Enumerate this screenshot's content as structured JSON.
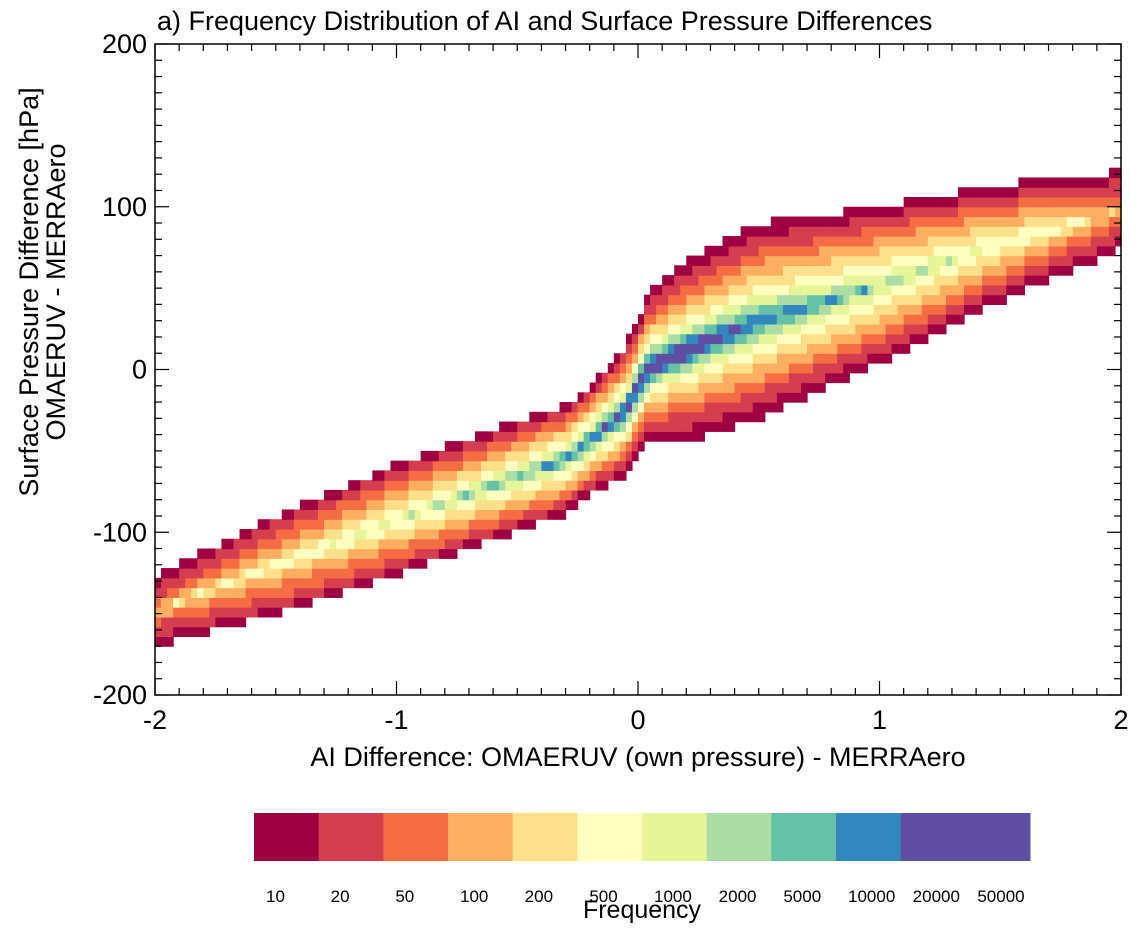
{
  "chart_data": {
    "type": "heatmap",
    "title": "a) Frequency Distribution of AI and Surface Pressure Differences",
    "xlabel": "AI Difference: OMAERUV (own pressure) - MERRAero",
    "ylabel_line1": "Surface Pressure Difference [hPa]",
    "ylabel_line2": "OMAERUV - MERRAero",
    "xlim": [
      -2,
      2
    ],
    "ylim": [
      -200,
      200
    ],
    "x_ticks": [
      "-2",
      "-1",
      "0",
      "1",
      "2"
    ],
    "y_ticks": [
      "-200",
      "-100",
      "0",
      "100",
      "200"
    ],
    "x_tick_values": [
      -2,
      -1,
      0,
      1,
      2
    ],
    "y_tick_values": [
      -200,
      -100,
      0,
      100,
      200
    ],
    "colorbar": {
      "label": "Frequency",
      "levels": [
        "10",
        "20",
        "50",
        "100",
        "200",
        "500",
        "1000",
        "2000",
        "5000",
        "10000",
        "20000",
        "50000"
      ],
      "colors": [
        "#9e0142",
        "#d53e4f",
        "#f46d43",
        "#fdae61",
        "#fee08b",
        "#ffffbf",
        "#e6f598",
        "#abdda4",
        "#66c2a5",
        "#3288bd",
        "#5e4fa2",
        "#5e4fa2"
      ]
    },
    "distribution": {
      "description_values": "Frequency is highest along a central ridge through (0,0); width of each colour band in hPa, listed from the outermost (10) band inward",
      "ridge_center": [
        {
          "x": -2.0,
          "y": -148
        },
        {
          "x": -1.0,
          "y": -92
        },
        {
          "x": -0.3,
          "y": -55
        },
        {
          "x": -0.05,
          "y": -25
        },
        {
          "x": 0.0,
          "y": -10
        },
        {
          "x": 0.05,
          "y": 2
        },
        {
          "x": 0.2,
          "y": 12
        },
        {
          "x": 0.5,
          "y": 30
        },
        {
          "x": 1.0,
          "y": 52
        },
        {
          "x": 1.5,
          "y": 78
        },
        {
          "x": 2.0,
          "y": 98
        }
      ],
      "band_halfwidth_hpa": [
        {
          "x": -2.0,
          "w": [
            22,
            16,
            8,
            4,
            0,
            0,
            0,
            0,
            0,
            0,
            0
          ]
        },
        {
          "x": -1.5,
          "w": [
            30,
            26,
            20,
            12,
            6,
            2,
            0,
            0,
            0,
            0,
            0
          ]
        },
        {
          "x": -1.0,
          "w": [
            34,
            30,
            25,
            18,
            12,
            6,
            2,
            0,
            0,
            0,
            0
          ]
        },
        {
          "x": -0.5,
          "w": [
            34,
            30,
            25,
            20,
            15,
            10,
            6,
            3,
            1,
            0,
            0
          ]
        },
        {
          "x": -0.2,
          "w": [
            33,
            29,
            25,
            21,
            17,
            13,
            9,
            6,
            4,
            2,
            0
          ]
        },
        {
          "x": 0.0,
          "w": [
            42,
            37,
            31,
            26,
            21,
            17,
            13,
            10,
            8,
            5,
            3
          ]
        },
        {
          "x": 0.2,
          "w": [
            56,
            48,
            39,
            32,
            25,
            19,
            15,
            12,
            9,
            7,
            5
          ]
        },
        {
          "x": 0.5,
          "w": [
            60,
            52,
            43,
            36,
            28,
            21,
            16,
            11,
            7,
            3,
            0
          ]
        },
        {
          "x": 1.0,
          "w": [
            48,
            42,
            35,
            28,
            21,
            13,
            7,
            2,
            0,
            0,
            0
          ]
        },
        {
          "x": 1.5,
          "w": [
            36,
            30,
            24,
            18,
            11,
            5,
            0,
            0,
            0,
            0,
            0
          ]
        },
        {
          "x": 2.0,
          "w": [
            24,
            18,
            10,
            4,
            0,
            0,
            0,
            0,
            0,
            0,
            0
          ]
        }
      ]
    }
  }
}
